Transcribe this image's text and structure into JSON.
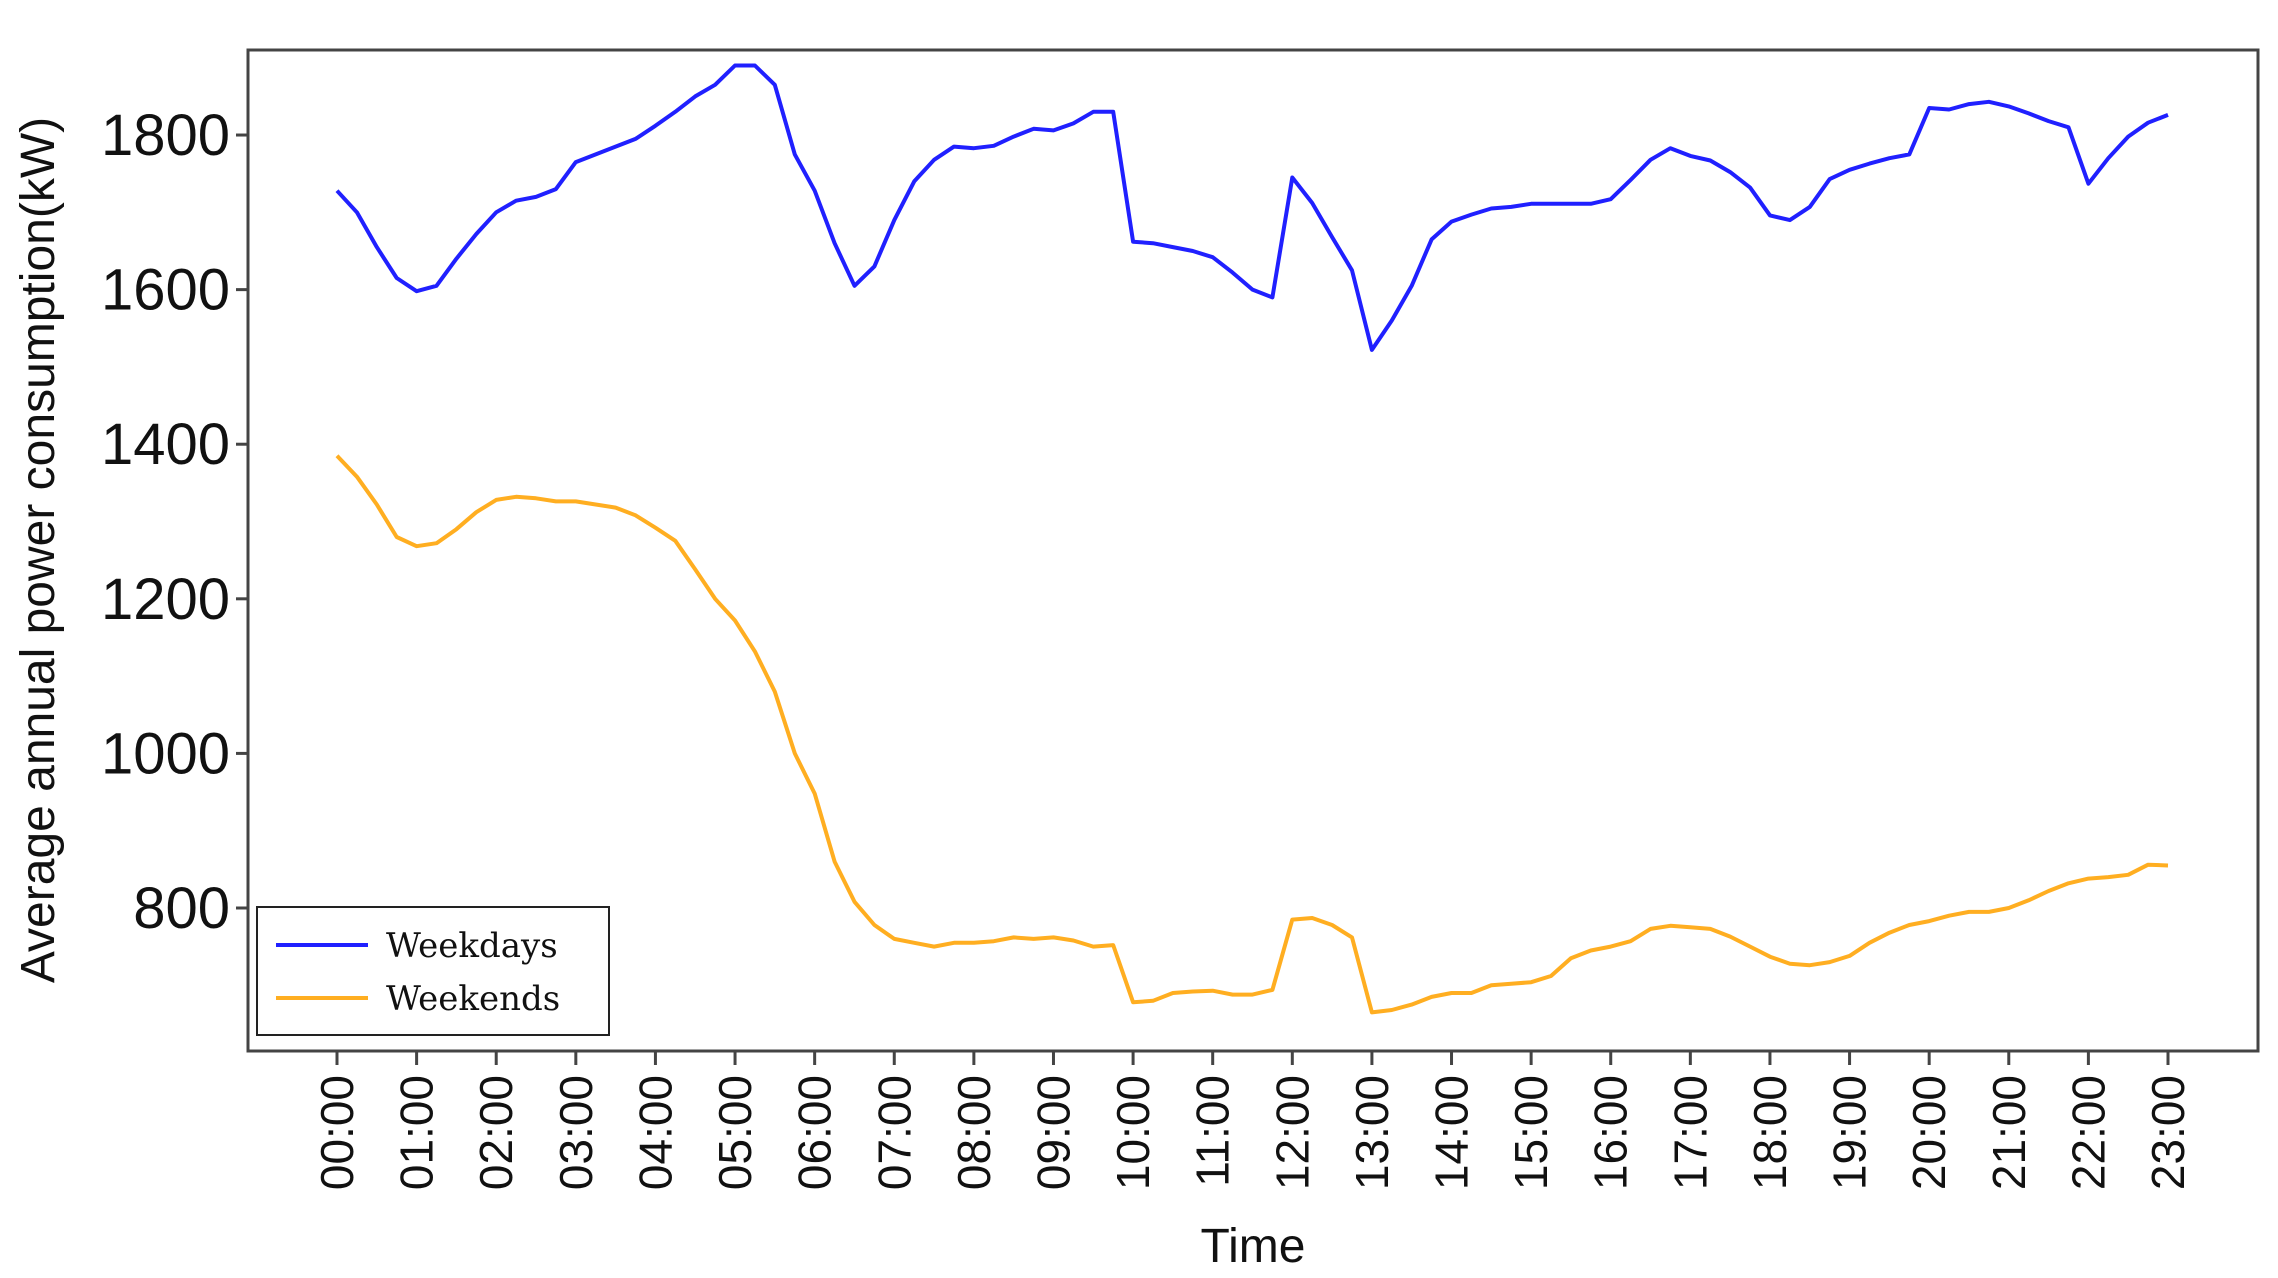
{
  "chart_data": {
    "type": "line",
    "title": "",
    "xlabel": "Time",
    "ylabel": "Average annual power consumption(kW)",
    "ylim": [
      615,
      1910
    ],
    "y_ticks": [
      800,
      1000,
      1200,
      1400,
      1600,
      1800
    ],
    "x_ticks": [
      "00:00",
      "01:00",
      "02:00",
      "03:00",
      "04:00",
      "05:00",
      "06:00",
      "07:00",
      "08:00",
      "09:00",
      "10:00",
      "11:00",
      "12:00",
      "13:00",
      "14:00",
      "15:00",
      "16:00",
      "17:00",
      "18:00",
      "19:00",
      "20:00",
      "21:00",
      "22:00",
      "23:00"
    ],
    "x_range": [
      0,
      23
    ],
    "grid": false,
    "legend_position": "bottom-left",
    "series": [
      {
        "name": "Weekdays",
        "color": "#2020ff",
        "x": [
          0,
          0.25,
          0.5,
          0.75,
          1,
          1.25,
          1.5,
          1.75,
          2,
          2.25,
          2.5,
          2.75,
          3,
          3.25,
          3.5,
          3.75,
          4,
          4.25,
          4.5,
          4.75,
          5,
          5.25,
          5.5,
          5.75,
          6,
          6.25,
          6.5,
          6.75,
          7,
          7.25,
          7.5,
          7.75,
          8,
          8.25,
          8.5,
          8.75,
          9,
          9.25,
          9.5,
          9.75,
          10,
          10.25,
          10.5,
          10.75,
          11,
          11.25,
          11.5,
          11.75,
          12,
          12.25,
          12.5,
          12.75,
          13,
          13.25,
          13.5,
          13.75,
          14,
          14.25,
          14.5,
          14.75,
          15,
          15.25,
          15.5,
          15.75,
          16,
          16.25,
          16.5,
          16.75,
          17,
          17.25,
          17.5,
          17.75,
          18,
          18.25,
          18.5,
          18.75,
          19,
          19.25,
          19.5,
          19.75,
          20,
          20.25,
          20.5,
          20.75,
          21,
          21.25,
          21.5,
          21.75,
          22,
          22.25,
          22.5,
          22.75,
          23
        ],
        "values": [
          1728,
          1700,
          1655,
          1615,
          1598,
          1605,
          1640,
          1672,
          1700,
          1715,
          1720,
          1730,
          1765,
          1775,
          1785,
          1795,
          1812,
          1830,
          1850,
          1865,
          1890,
          1890,
          1865,
          1775,
          1728,
          1660,
          1605,
          1630,
          1690,
          1740,
          1768,
          1785,
          1783,
          1786,
          1798,
          1808,
          1806,
          1815,
          1830,
          1830,
          1662,
          1660,
          1655,
          1650,
          1642,
          1622,
          1600,
          1590,
          1745,
          1712,
          1668,
          1625,
          1522,
          1560,
          1605,
          1665,
          1688,
          1697,
          1705,
          1707,
          1711,
          1711,
          1711,
          1711,
          1717,
          1742,
          1768,
          1783,
          1773,
          1767,
          1752,
          1732,
          1696,
          1690,
          1707,
          1743,
          1755,
          1763,
          1770,
          1775,
          1835,
          1833,
          1840,
          1843,
          1837,
          1828,
          1818,
          1810,
          1737,
          1770,
          1798,
          1816,
          1826
        ]
      },
      {
        "name": "Weekends",
        "color": "#ffae21",
        "x": [
          0,
          0.25,
          0.5,
          0.75,
          1,
          1.25,
          1.5,
          1.75,
          2,
          2.25,
          2.5,
          2.75,
          3,
          3.25,
          3.5,
          3.75,
          4,
          4.25,
          4.5,
          4.75,
          5,
          5.25,
          5.5,
          5.75,
          6,
          6.25,
          6.5,
          6.75,
          7,
          7.25,
          7.5,
          7.75,
          8,
          8.25,
          8.5,
          8.75,
          9,
          9.25,
          9.5,
          9.75,
          10,
          10.25,
          10.5,
          10.75,
          11,
          11.25,
          11.5,
          11.75,
          12,
          12.25,
          12.5,
          12.75,
          13,
          13.25,
          13.5,
          13.75,
          14,
          14.25,
          14.5,
          14.75,
          15,
          15.25,
          15.5,
          15.75,
          16,
          16.25,
          16.5,
          16.75,
          17,
          17.25,
          17.5,
          17.75,
          18,
          18.25,
          18.5,
          18.75,
          19,
          19.25,
          19.5,
          19.75,
          20,
          20.25,
          20.5,
          20.75,
          21,
          21.25,
          21.5,
          21.75,
          22,
          22.25,
          22.5,
          22.75,
          23
        ],
        "values": [
          1385,
          1358,
          1322,
          1280,
          1268,
          1272,
          1290,
          1312,
          1328,
          1332,
          1330,
          1326,
          1326,
          1322,
          1318,
          1308,
          1292,
          1275,
          1238,
          1200,
          1172,
          1132,
          1080,
          1000,
          948,
          860,
          808,
          778,
          760,
          755,
          750,
          755,
          755,
          757,
          762,
          760,
          762,
          758,
          750,
          752,
          678,
          680,
          690,
          692,
          693,
          688,
          688,
          694,
          785,
          787,
          778,
          762,
          665,
          668,
          675,
          685,
          690,
          690,
          700,
          702,
          704,
          712,
          735,
          745,
          750,
          757,
          773,
          777,
          775,
          773,
          763,
          750,
          737,
          728,
          726,
          730,
          738,
          755,
          768,
          778,
          783,
          790,
          795,
          795,
          800,
          810,
          822,
          832,
          838,
          840,
          843,
          856,
          855
        ]
      }
    ]
  }
}
